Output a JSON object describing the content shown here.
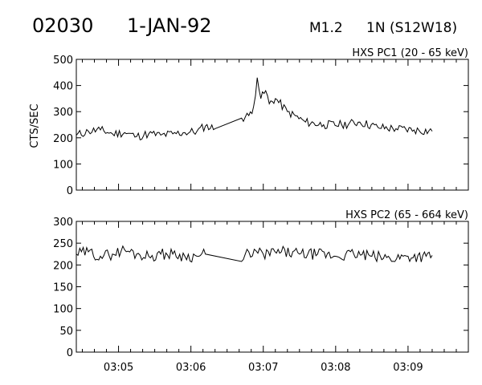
{
  "header": {
    "event_id": "02030",
    "date": "1-JAN-92",
    "flare_class": "M1.2",
    "importance": "1N",
    "location": "(S12W18)"
  },
  "chart_data": [
    {
      "type": "line",
      "title": "HXS PC1 (20 - 65 keV)",
      "ylabel": "CTS/SEC",
      "xlabel": "",
      "xlim": [
        "03:04:25",
        "03:09:50"
      ],
      "ylim": [
        0,
        500
      ],
      "yticks": [
        "0",
        "100",
        "200",
        "300",
        "400",
        "500"
      ],
      "xticks": [
        "03:05",
        "03:06",
        "03:07",
        "03:08",
        "03:09"
      ],
      "grid": false,
      "series": [
        {
          "points": [
            [
              "03:04:25",
              210
            ],
            [
              "03:04:35",
              225
            ],
            [
              "03:04:45",
              230
            ],
            [
              "03:04:55",
              215
            ],
            [
              "03:05:05",
              220
            ],
            [
              "03:05:15",
              205
            ],
            [
              "03:05:25",
              215
            ],
            [
              "03:05:35",
              210
            ],
            [
              "03:05:45",
              215
            ],
            [
              "03:05:55",
              220
            ],
            [
              "03:06:05",
              225
            ],
            [
              "03:06:12",
              245
            ],
            [
              "03:06:20",
              235
            ],
            [
              "03:06:42",
              275
            ],
            [
              "03:06:48",
              285
            ],
            [
              "03:06:52",
              320
            ],
            [
              "03:06:55",
              430
            ],
            [
              "03:06:58",
              350
            ],
            [
              "03:07:02",
              380
            ],
            [
              "03:07:05",
              330
            ],
            [
              "03:07:10",
              350
            ],
            [
              "03:07:20",
              300
            ],
            [
              "03:07:35",
              260
            ],
            [
              "03:07:50",
              250
            ],
            [
              "03:08:05",
              250
            ],
            [
              "03:08:20",
              260
            ],
            [
              "03:08:35",
              240
            ],
            [
              "03:08:50",
              235
            ],
            [
              "03:09:05",
              230
            ],
            [
              "03:09:20",
              225
            ]
          ]
        }
      ]
    },
    {
      "type": "line",
      "title": "HXS PC2 (65 - 664 keV)",
      "ylabel": "",
      "xlabel": "",
      "xlim": [
        "03:04:25",
        "03:09:50"
      ],
      "ylim": [
        0,
        300
      ],
      "yticks": [
        "0",
        "50",
        "100",
        "150",
        "200",
        "250",
        "300"
      ],
      "xticks": [
        "03:05",
        "03:06",
        "03:07",
        "03:08",
        "03:09"
      ],
      "grid": false,
      "series": [
        {
          "points": [
            [
              "03:04:25",
              225
            ],
            [
              "03:04:35",
              230
            ],
            [
              "03:04:45",
              220
            ],
            [
              "03:04:55",
              225
            ],
            [
              "03:05:05",
              235
            ],
            [
              "03:05:15",
              225
            ],
            [
              "03:05:25",
              220
            ],
            [
              "03:05:35",
              225
            ],
            [
              "03:05:45",
              225
            ],
            [
              "03:05:55",
              220
            ],
            [
              "03:06:05",
              220
            ],
            [
              "03:06:12",
              225
            ],
            [
              "03:06:42",
              208
            ],
            [
              "03:06:48",
              230
            ],
            [
              "03:07:00",
              225
            ],
            [
              "03:07:15",
              230
            ],
            [
              "03:07:30",
              225
            ],
            [
              "03:07:45",
              225
            ],
            [
              "03:08:00",
              220
            ],
            [
              "03:08:15",
              225
            ],
            [
              "03:08:30",
              220
            ],
            [
              "03:08:45",
              215
            ],
            [
              "03:09:00",
              220
            ],
            [
              "03:09:15",
              220
            ],
            [
              "03:09:20",
              222
            ]
          ]
        }
      ]
    }
  ]
}
